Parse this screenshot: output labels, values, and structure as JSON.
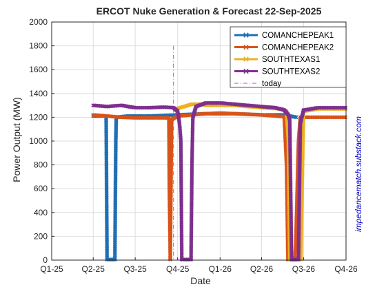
{
  "chart_data": {
    "type": "line",
    "title": "ERCOT Nuke Generation & Forecast 22-Sep-2025",
    "xlabel": "Date",
    "ylabel": "Power Output (MW)",
    "ylim": [
      0,
      2000
    ],
    "yticks": [
      0,
      200,
      400,
      600,
      800,
      1000,
      1200,
      1400,
      1600,
      1800,
      2000
    ],
    "x_axis": {
      "range": [
        "2025-01-01",
        "2026-10-01"
      ],
      "ticks": [
        {
          "date": "2025-01-01",
          "label": "Q1-25"
        },
        {
          "date": "2025-04-01",
          "label": "Q2-25"
        },
        {
          "date": "2025-07-01",
          "label": "Q3-25"
        },
        {
          "date": "2025-10-01",
          "label": "Q4-25"
        },
        {
          "date": "2026-01-01",
          "label": "Q1-26"
        },
        {
          "date": "2026-04-01",
          "label": "Q2-26"
        },
        {
          "date": "2026-07-01",
          "label": "Q3-26"
        },
        {
          "date": "2026-10-01",
          "label": "Q4-26"
        }
      ]
    },
    "grid": true,
    "legend_position": "top-right",
    "today": {
      "label": "today",
      "date": "2025-09-22",
      "color": "#cc44cc"
    },
    "annotation": "impedancematch.substack.com",
    "series": [
      {
        "name": "COMANCHEPEAK1",
        "color": "#1f6fb4",
        "points": [
          [
            "2025-04-01",
            1210
          ],
          [
            "2025-04-15",
            1210
          ],
          [
            "2025-04-29",
            1210
          ],
          [
            "2025-04-30",
            600
          ],
          [
            "2025-05-01",
            5
          ],
          [
            "2025-05-09",
            5
          ],
          [
            "2025-05-18",
            5
          ],
          [
            "2025-05-19",
            550
          ],
          [
            "2025-05-20",
            1010
          ],
          [
            "2025-05-21",
            1200
          ],
          [
            "2025-06-15",
            1210
          ],
          [
            "2025-08-01",
            1210
          ],
          [
            "2025-10-01",
            1220
          ],
          [
            "2025-12-01",
            1230
          ],
          [
            "2026-02-01",
            1230
          ],
          [
            "2026-04-01",
            1220
          ],
          [
            "2026-05-20",
            1220
          ],
          [
            "2026-06-15",
            1200
          ]
        ]
      },
      {
        "name": "COMANCHEPEAK2",
        "color": "#d95319",
        "points": [
          [
            "2025-04-01",
            1220
          ],
          [
            "2025-05-01",
            1210
          ],
          [
            "2025-06-01",
            1200
          ],
          [
            "2025-07-01",
            1195
          ],
          [
            "2025-08-01",
            1195
          ],
          [
            "2025-09-01",
            1195
          ],
          [
            "2025-09-12",
            1195
          ],
          [
            "2025-09-13",
            600
          ],
          [
            "2025-09-15",
            5
          ],
          [
            "2025-09-18",
            1180
          ],
          [
            "2025-10-01",
            1210
          ],
          [
            "2025-11-01",
            1220
          ],
          [
            "2025-12-01",
            1230
          ],
          [
            "2026-01-01",
            1235
          ],
          [
            "2026-02-01",
            1230
          ],
          [
            "2026-03-01",
            1225
          ],
          [
            "2026-04-01",
            1220
          ],
          [
            "2026-05-01",
            1210
          ],
          [
            "2026-05-20",
            1205
          ],
          [
            "2026-05-25",
            800
          ],
          [
            "2026-05-28",
            5
          ],
          [
            "2026-06-10",
            5
          ],
          [
            "2026-06-12",
            5
          ],
          [
            "2026-06-14",
            120
          ],
          [
            "2026-06-17",
            570
          ],
          [
            "2026-06-20",
            1000
          ],
          [
            "2026-06-24",
            1200
          ],
          [
            "2026-07-15",
            1200
          ],
          [
            "2026-08-15",
            1200
          ],
          [
            "2026-09-30",
            1200
          ]
        ]
      },
      {
        "name": "SOUTHTEXAS1",
        "color": "#edb120",
        "points": [
          [
            "2025-09-28",
            1270
          ],
          [
            "2025-10-15",
            1290
          ],
          [
            "2025-11-01",
            1310
          ],
          [
            "2025-11-20",
            1310
          ],
          [
            "2025-12-01",
            1300
          ],
          [
            "2026-02-01",
            1300
          ],
          [
            "2026-04-01",
            1280
          ],
          [
            "2026-05-15",
            1270
          ],
          [
            "2026-05-25",
            1250
          ],
          [
            "2026-05-29",
            1000
          ],
          [
            "2026-06-01",
            5
          ],
          [
            "2026-06-10",
            5
          ],
          [
            "2026-06-25",
            5
          ],
          [
            "2026-06-29",
            850
          ],
          [
            "2026-07-01",
            1250
          ],
          [
            "2026-08-01",
            1270
          ],
          [
            "2026-09-30",
            1270
          ]
        ]
      },
      {
        "name": "SOUTHTEXAS2",
        "color": "#7e2f8e",
        "points": [
          [
            "2025-04-01",
            1300
          ],
          [
            "2025-05-01",
            1290
          ],
          [
            "2025-06-01",
            1300
          ],
          [
            "2025-07-01",
            1280
          ],
          [
            "2025-08-01",
            1280
          ],
          [
            "2025-09-01",
            1285
          ],
          [
            "2025-09-22",
            1280
          ],
          [
            "2025-10-01",
            1250
          ],
          [
            "2025-10-05",
            1150
          ],
          [
            "2025-10-08",
            1000
          ],
          [
            "2025-10-10",
            5
          ],
          [
            "2025-10-20",
            5
          ],
          [
            "2025-10-30",
            5
          ],
          [
            "2025-11-01",
            800
          ],
          [
            "2025-11-03",
            1200
          ],
          [
            "2025-11-10",
            1290
          ],
          [
            "2025-12-01",
            1320
          ],
          [
            "2026-01-01",
            1320
          ],
          [
            "2026-02-01",
            1310
          ],
          [
            "2026-03-01",
            1300
          ],
          [
            "2026-04-01",
            1290
          ],
          [
            "2026-05-01",
            1280
          ],
          [
            "2026-05-20",
            1260
          ],
          [
            "2026-05-29",
            1220
          ],
          [
            "2026-06-01",
            1180
          ],
          [
            "2026-06-05",
            5
          ],
          [
            "2026-06-16",
            5
          ],
          [
            "2026-06-20",
            5
          ],
          [
            "2026-06-24",
            1150
          ],
          [
            "2026-07-01",
            1260
          ],
          [
            "2026-08-01",
            1280
          ],
          [
            "2026-09-30",
            1280
          ]
        ]
      }
    ]
  }
}
